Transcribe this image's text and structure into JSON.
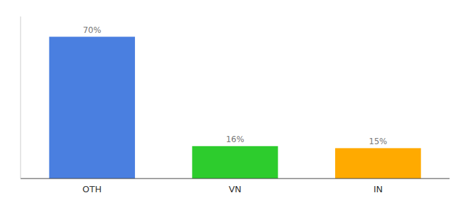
{
  "chart_data": {
    "type": "bar",
    "categories": [
      "OTH",
      "VN",
      "IN"
    ],
    "values": [
      70,
      16,
      15
    ],
    "value_labels": [
      "70%",
      "16%",
      "15%"
    ],
    "colors": [
      "#4a7fe0",
      "#2dcc2d",
      "#ffaa00"
    ],
    "ylim": [
      0,
      80
    ],
    "data_labels": true,
    "tick_labels": "x",
    "grid": false
  }
}
